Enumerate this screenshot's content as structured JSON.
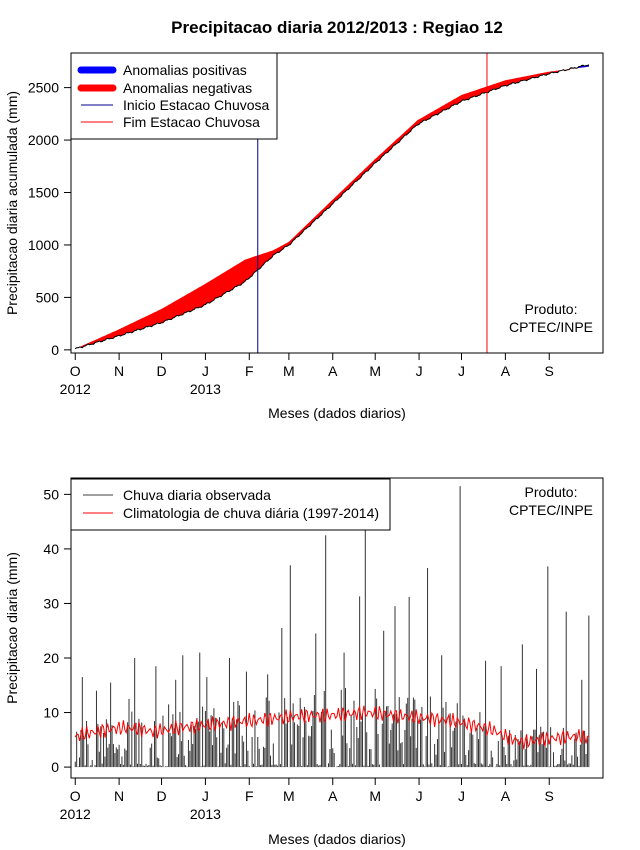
{
  "chart_data": [
    {
      "type": "area",
      "title": "Precipitacao diaria 2012/2013 : Regiao 12",
      "xlabel": "Meses (dados diarios)",
      "ylabel": "Precipitacao diaria acumulada (mm)",
      "x_days": [
        0,
        30,
        61,
        92,
        120,
        140,
        151,
        181,
        212,
        242,
        273,
        304,
        334,
        363
      ],
      "observed_cumulative": [
        10,
        130,
        260,
        430,
        650,
        900,
        1000,
        1380,
        1780,
        2150,
        2370,
        2520,
        2630,
        2720
      ],
      "climatology_cumulative": [
        10,
        190,
        390,
        630,
        860,
        950,
        1030,
        1420,
        1820,
        2190,
        2430,
        2570,
        2650,
        2700
      ],
      "xlim": [
        -3,
        373
      ],
      "ylim": [
        -30,
        2830
      ],
      "yticks": [
        0,
        500,
        1000,
        1500,
        2000,
        2500
      ],
      "month_ticks": [
        {
          "day": 0,
          "label": "O"
        },
        {
          "day": 31,
          "label": "N"
        },
        {
          "day": 61,
          "label": "D"
        },
        {
          "day": 92,
          "label": "J"
        },
        {
          "day": 123,
          "label": "F"
        },
        {
          "day": 151,
          "label": "M"
        },
        {
          "day": 182,
          "label": "A"
        },
        {
          "day": 212,
          "label": "M"
        },
        {
          "day": 243,
          "label": "J"
        },
        {
          "day": 273,
          "label": "J"
        },
        {
          "day": 304,
          "label": "A"
        },
        {
          "day": 335,
          "label": "S"
        }
      ],
      "year_labels": [
        {
          "day": 0,
          "label": "2012"
        },
        {
          "day": 92,
          "label": "2013"
        }
      ],
      "rainy_season_start_day": 129,
      "rainy_season_end_day": 291,
      "legend": [
        {
          "label": "Anomalias positivas",
          "color": "#0000ff",
          "kind": "thick"
        },
        {
          "label": "Anomalias negativas",
          "color": "#ff0000",
          "kind": "thick"
        },
        {
          "label": "Inicio Estacao Chuvosa",
          "color": "#00008b",
          "kind": "thin"
        },
        {
          "label": "Fim Estacao Chuvosa",
          "color": "#ff0000",
          "kind": "thin"
        }
      ],
      "legend_position": "top-left",
      "credit": [
        "Produto:",
        "CPTEC/INPE"
      ],
      "colors": {
        "positive": "#0000ff",
        "negative": "#ff0000",
        "start_line": "#00008b",
        "end_line": "#ff0000"
      }
    },
    {
      "type": "bar",
      "xlabel": "Meses (dados diarios)",
      "ylabel": "Precipitacao diaria (mm)",
      "xlim": [
        -3,
        373
      ],
      "ylim": [
        -2,
        53
      ],
      "yticks": [
        0,
        10,
        20,
        30,
        40,
        50
      ],
      "month_ticks": [
        {
          "day": 0,
          "label": "O"
        },
        {
          "day": 31,
          "label": "N"
        },
        {
          "day": 61,
          "label": "D"
        },
        {
          "day": 92,
          "label": "J"
        },
        {
          "day": 123,
          "label": "F"
        },
        {
          "day": 151,
          "label": "M"
        },
        {
          "day": 182,
          "label": "A"
        },
        {
          "day": 212,
          "label": "M"
        },
        {
          "day": 243,
          "label": "J"
        },
        {
          "day": 273,
          "label": "J"
        },
        {
          "day": 304,
          "label": "A"
        },
        {
          "day": 335,
          "label": "S"
        }
      ],
      "year_labels": [
        {
          "day": 0,
          "label": "2012"
        },
        {
          "day": 92,
          "label": "2013"
        }
      ],
      "peaks": [
        {
          "day": 0,
          "value": 1
        },
        {
          "day": 5,
          "value": 16.5
        },
        {
          "day": 15,
          "value": 14
        },
        {
          "day": 25,
          "value": 15.5
        },
        {
          "day": 38,
          "value": 12.5
        },
        {
          "day": 42,
          "value": 20
        },
        {
          "day": 57,
          "value": 18.5
        },
        {
          "day": 66,
          "value": 11.5
        },
        {
          "day": 71,
          "value": 16
        },
        {
          "day": 76,
          "value": 20.5
        },
        {
          "day": 88,
          "value": 21
        },
        {
          "day": 93,
          "value": 16.5
        },
        {
          "day": 109,
          "value": 20
        },
        {
          "day": 121,
          "value": 17.5
        },
        {
          "day": 136,
          "value": 17
        },
        {
          "day": 146,
          "value": 25.5
        },
        {
          "day": 152,
          "value": 37
        },
        {
          "day": 170,
          "value": 24.5
        },
        {
          "day": 177,
          "value": 42.5
        },
        {
          "day": 190,
          "value": 21
        },
        {
          "day": 201,
          "value": 31.3
        },
        {
          "day": 205,
          "value": 44.5
        },
        {
          "day": 218,
          "value": 25
        },
        {
          "day": 226,
          "value": 29.5
        },
        {
          "day": 236,
          "value": 31.2
        },
        {
          "day": 249,
          "value": 36.5
        },
        {
          "day": 259,
          "value": 20.5
        },
        {
          "day": 272,
          "value": 51.5
        },
        {
          "day": 290,
          "value": 19.5
        },
        {
          "day": 301,
          "value": 18.5
        },
        {
          "day": 316,
          "value": 22.5
        },
        {
          "day": 326,
          "value": 18
        },
        {
          "day": 334,
          "value": 36.8
        },
        {
          "day": 347,
          "value": 28.5
        },
        {
          "day": 358,
          "value": 16
        },
        {
          "day": 363,
          "value": 27.8
        }
      ],
      "climatology_line": {
        "days": [
          0,
          5,
          15,
          25,
          35,
          45,
          55,
          65,
          75,
          85,
          95,
          105,
          115,
          125,
          135,
          145,
          155,
          165,
          175,
          185,
          195,
          205,
          215,
          225,
          235,
          245,
          255,
          265,
          275,
          285,
          295,
          305,
          315,
          325,
          335,
          345,
          355,
          363
        ],
        "values": [
          5.5,
          6,
          6.5,
          7,
          7.2,
          7,
          6.5,
          6.8,
          7.3,
          7.5,
          7.8,
          8,
          8.3,
          8.5,
          8.8,
          9,
          9.3,
          9.5,
          9.4,
          9.6,
          9.8,
          10,
          9.8,
          9.5,
          9.3,
          9,
          8.8,
          8.5,
          8,
          7.5,
          6.8,
          5.5,
          4.6,
          4.8,
          5.2,
          5.5,
          5.6,
          5.3
        ]
      },
      "legend": [
        {
          "label": "Chuva diaria observada",
          "color": "#404040",
          "kind": "thin"
        },
        {
          "label": "Climatologia de chuva diária (1997-2014)",
          "color": "#ff0000",
          "kind": "thin"
        }
      ],
      "legend_position": "top-left",
      "credit": [
        "Produto:",
        "CPTEC/INPE"
      ],
      "colors": {
        "bars": "#333333",
        "climatology": "#ff0000"
      }
    }
  ]
}
